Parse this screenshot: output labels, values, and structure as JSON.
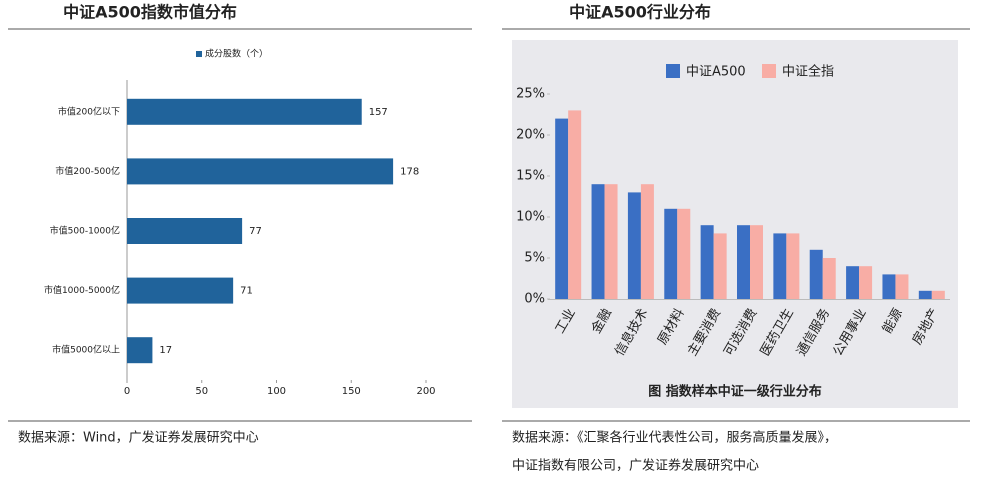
{
  "chart_data": [
    {
      "type": "barh",
      "title": "中证A500指数市值分布",
      "series": [
        {
          "name": "成分股数（个）",
          "color": "#20639b",
          "values": [
            157,
            178,
            77,
            71,
            17
          ]
        }
      ],
      "categories": [
        "市值200亿以下",
        "市值200-500亿",
        "市值500-1000亿",
        "市值1000-5000亿",
        "市值5000亿以上"
      ],
      "xlim": [
        0,
        200
      ],
      "xticks": [
        0,
        50,
        100,
        150,
        200
      ],
      "source": [
        "数据来源：Wind，广发证券发展研究中心"
      ]
    },
    {
      "type": "bar",
      "title": "中证A500行业分布",
      "caption": "图 指数样本中证一级行业分布",
      "categories": [
        "工业",
        "金融",
        "信息技术",
        "原材料",
        "主要消费",
        "可选消费",
        "医药卫生",
        "通信服务",
        "公用事业",
        "能源",
        "房地产"
      ],
      "series": [
        {
          "name": "中证A500",
          "color": "#3a6fc4",
          "values": [
            22,
            14,
            13,
            11,
            9,
            9,
            8,
            6,
            4,
            3,
            1
          ]
        },
        {
          "name": "中证全指",
          "color": "#f8ada5",
          "values": [
            23,
            14,
            14,
            11,
            8,
            9,
            8,
            5,
            4,
            3,
            1
          ]
        }
      ],
      "ylim": [
        0,
        25
      ],
      "yticks": [
        {
          "value": 0,
          "label": "0%"
        },
        {
          "value": 5,
          "label": "5%"
        },
        {
          "value": 10,
          "label": "10%"
        },
        {
          "value": 15,
          "label": "15%"
        },
        {
          "value": 20,
          "label": "20%"
        },
        {
          "value": 25,
          "label": "25%"
        }
      ],
      "source": [
        "数据来源：《汇聚各行业代表性公司，服务高质量发展》，",
        "中证指数有限公司，广发证券发展研究中心"
      ]
    }
  ]
}
